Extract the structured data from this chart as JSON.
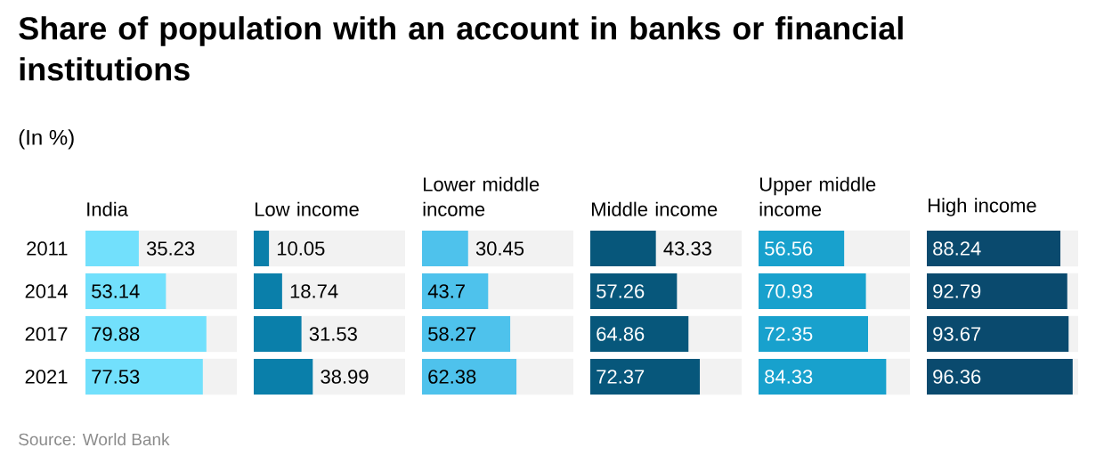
{
  "chart_data": [
    {
      "type": "other",
      "title": "Share of population with an account in banks or financial institutions",
      "subtitle": "(In %)",
      "annotations": [
        "Source: World Bank"
      ]
    },
    {
      "type": "bar",
      "orientation": "horizontal",
      "title": "India",
      "categories": [
        "2011",
        "2014",
        "2017",
        "2021"
      ],
      "color": "#72e0fc",
      "values": [
        35.23,
        53.14,
        79.88,
        77.53
      ],
      "xlim": [
        0,
        100
      ],
      "data_labels": true,
      "tick_labels": "y"
    },
    {
      "type": "bar",
      "orientation": "horizontal",
      "title": "Low income",
      "categories": [
        "2011",
        "2014",
        "2017",
        "2021"
      ],
      "color": "#0a7faa",
      "values": [
        10.05,
        18.74,
        31.53,
        38.99
      ],
      "xlim": [
        0,
        100
      ],
      "data_labels": true,
      "tick_labels": false
    },
    {
      "type": "bar",
      "orientation": "horizontal",
      "title": "Lower middle income",
      "categories": [
        "2011",
        "2014",
        "2017",
        "2021"
      ],
      "color": "#4ec2ec",
      "values": [
        30.45,
        43.7,
        58.27,
        62.38
      ],
      "xlim": [
        0,
        100
      ],
      "data_labels": true,
      "tick_labels": false
    },
    {
      "type": "bar",
      "orientation": "horizontal",
      "title": "Middle income",
      "categories": [
        "2011",
        "2014",
        "2017",
        "2021"
      ],
      "color": "#07577b",
      "values": [
        43.33,
        57.26,
        64.86,
        72.37
      ],
      "xlim": [
        0,
        100
      ],
      "data_labels": true,
      "tick_labels": false
    },
    {
      "type": "bar",
      "orientation": "horizontal",
      "title": "Upper middle income",
      "categories": [
        "2011",
        "2014",
        "2017",
        "2021"
      ],
      "color": "#18a1cd",
      "values": [
        56.56,
        70.93,
        72.35,
        84.33
      ],
      "xlim": [
        0,
        100
      ],
      "data_labels": true,
      "tick_labels": false
    },
    {
      "type": "bar",
      "orientation": "horizontal",
      "title": "High income",
      "categories": [
        "2011",
        "2014",
        "2017",
        "2021"
      ],
      "color": "#0a4a6e",
      "values": [
        88.24,
        92.79,
        93.67,
        96.36
      ],
      "xlim": [
        0,
        100
      ],
      "data_labels": true,
      "tick_labels": false
    }
  ]
}
